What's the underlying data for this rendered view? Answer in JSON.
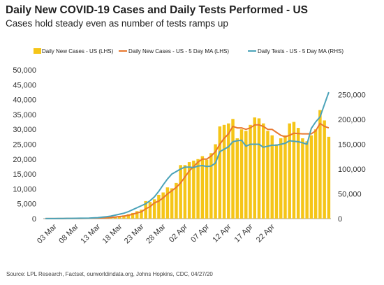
{
  "title": "Daily New COVID-19 Cases and Daily Tests Performed - US",
  "subtitle": "Cases hold steady even as number of tests ramps up",
  "source": "Source: LPL Research, Factset, ourworldindata.org, Johns Hopkins, CDC, 04/27/20",
  "colors": {
    "cases_bar": "#F5C518",
    "cases_ma": "#E8772E",
    "tests_ma": "#4BA3B9",
    "axis": "#999999"
  },
  "chart_data": {
    "type": "bar",
    "x_tick_labels": [
      "03 Mar",
      "08 Mar",
      "13 Mar",
      "18 Mar",
      "23 Mar",
      "28 Mar",
      "02 Apr",
      "07 Apr",
      "12 Apr",
      "17 Apr",
      "22 Apr"
    ],
    "y_left_ticks": [
      "0",
      "5,000",
      "10,000",
      "15,000",
      "20,000",
      "25,000",
      "30,000",
      "35,000",
      "40,000",
      "45,000",
      "50,000"
    ],
    "y_right_ticks": [
      "0",
      "50,000",
      "100,000",
      "150,000",
      "200,000",
      "250,000"
    ],
    "ylim_left": [
      0,
      50000
    ],
    "ylim_right": [
      0,
      300000
    ],
    "legend": [
      "Daily New Cases - US (LHS)",
      "Daily New Cases - US - 5 Day MA (LHS)",
      "Daily Tests - US - 5 Day MA (RHS)"
    ],
    "series": [
      {
        "name": "Daily New Cases - US (LHS)",
        "type": "bar",
        "axis": "left",
        "values": [
          20,
          25,
          30,
          35,
          40,
          50,
          60,
          80,
          100,
          130,
          160,
          200,
          250,
          300,
          400,
          500,
          700,
          900,
          1100,
          1500,
          1900,
          2500,
          3000,
          5900,
          5600,
          6500,
          8000,
          8800,
          10500,
          10200,
          12000,
          18000,
          18000,
          19000,
          19500,
          20000,
          21000,
          19800,
          22000,
          25000,
          31000,
          31500,
          32000,
          33500,
          27000,
          30000,
          29500,
          31500,
          34000,
          33700,
          32000,
          29500,
          28000,
          25000,
          27000,
          28000,
          32000,
          32500,
          30500,
          27000,
          26000,
          28000,
          30000,
          36500,
          33000,
          27500
        ]
      },
      {
        "name": "Daily New Cases - US - 5 Day MA (LHS)",
        "type": "line",
        "axis": "left",
        "values": [
          20,
          22,
          25,
          30,
          35,
          40,
          48,
          60,
          75,
          95,
          120,
          160,
          200,
          250,
          310,
          400,
          520,
          700,
          850,
          1100,
          1500,
          1900,
          2300,
          3300,
          4000,
          5300,
          5900,
          7000,
          8300,
          9400,
          10500,
          12000,
          14000,
          16000,
          17500,
          19000,
          20000,
          20000,
          21000,
          22500,
          25000,
          27000,
          28500,
          31000,
          30500,
          30500,
          30000,
          30500,
          31500,
          31500,
          31000,
          30000,
          30000,
          29000,
          28000,
          27500,
          28000,
          28700,
          28600,
          28500,
          28500,
          28500,
          29500,
          32000,
          31000,
          30500
        ]
      },
      {
        "name": "Daily Tests - US - 5 Day MA (RHS)",
        "type": "line",
        "axis": "right",
        "values": [
          100,
          150,
          200,
          300,
          400,
          500,
          600,
          700,
          800,
          900,
          1000,
          1500,
          2000,
          3000,
          4000,
          5000,
          7000,
          9000,
          11000,
          14000,
          18000,
          22000,
          26000,
          30000,
          36000,
          44000,
          55000,
          68000,
          80000,
          90000,
          95000,
          100000,
          104000,
          104000,
          103000,
          106000,
          107000,
          105000,
          106000,
          112000,
          135000,
          140000,
          145000,
          155000,
          157000,
          158000,
          146000,
          150000,
          150000,
          150000,
          144000,
          146000,
          148000,
          148000,
          150000,
          152000,
          157000,
          156000,
          155000,
          153000,
          150000,
          182000,
          195000,
          205000,
          230000,
          255000
        ]
      }
    ]
  }
}
